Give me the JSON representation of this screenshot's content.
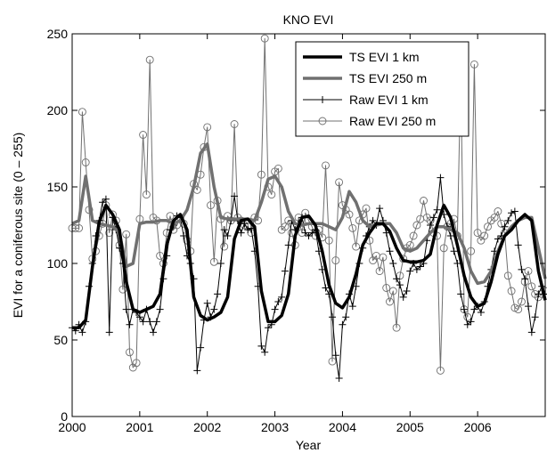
{
  "chart_data": {
    "type": "line",
    "title": "KNO EVI",
    "xlabel": "Year",
    "ylabel": "EVI for a coniferous site (0 – 255)",
    "xlim": [
      2000,
      2007
    ],
    "ylim": [
      0,
      250
    ],
    "x_ticks": [
      2000,
      2001,
      2002,
      2003,
      2004,
      2005,
      2006
    ],
    "y_ticks": [
      0,
      50,
      100,
      150,
      200,
      250
    ],
    "grid": false,
    "legend_position": "top-right",
    "series": [
      {
        "name": "TS EVI 1 km",
        "color": "#000000",
        "style": "thick-line",
        "x": [
          2000.0,
          2000.1,
          2000.2,
          2000.3,
          2000.4,
          2000.5,
          2000.6,
          2000.7,
          2000.8,
          2000.9,
          2001.0,
          2001.1,
          2001.2,
          2001.3,
          2001.4,
          2001.5,
          2001.6,
          2001.7,
          2001.8,
          2001.9,
          2002.0,
          2002.1,
          2002.2,
          2002.3,
          2002.4,
          2002.5,
          2002.6,
          2002.7,
          2002.8,
          2002.9,
          2003.0,
          2003.1,
          2003.2,
          2003.3,
          2003.4,
          2003.5,
          2003.6,
          2003.7,
          2003.8,
          2003.9,
          2004.0,
          2004.1,
          2004.2,
          2004.3,
          2004.4,
          2004.5,
          2004.6,
          2004.7,
          2004.8,
          2004.9,
          2005.0,
          2005.1,
          2005.2,
          2005.3,
          2005.4,
          2005.5,
          2005.6,
          2005.7,
          2005.8,
          2005.9,
          2006.0,
          2006.1,
          2006.2,
          2006.3,
          2006.4,
          2006.5,
          2006.6,
          2006.7,
          2006.8,
          2006.9,
          2007.0
        ],
        "values": [
          58,
          58,
          63,
          98,
          127,
          138,
          132,
          122,
          88,
          70,
          68,
          70,
          72,
          80,
          112,
          128,
          132,
          122,
          78,
          66,
          63,
          65,
          68,
          78,
          116,
          128,
          129,
          124,
          82,
          62,
          62,
          66,
          80,
          118,
          130,
          131,
          125,
          108,
          86,
          74,
          71,
          78,
          93,
          112,
          120,
          126,
          126,
          121,
          110,
          102,
          101,
          101,
          102,
          106,
          125,
          138,
          130,
          112,
          92,
          78,
          72,
          74,
          88,
          106,
          118,
          122,
          128,
          132,
          128,
          95,
          76
        ]
      },
      {
        "name": "TS EVI 250 m",
        "color": "#707070",
        "style": "thick-line",
        "x": [
          2000.0,
          2000.1,
          2000.2,
          2000.3,
          2000.4,
          2000.5,
          2000.6,
          2000.7,
          2000.8,
          2000.9,
          2001.0,
          2001.1,
          2001.2,
          2001.3,
          2001.4,
          2001.5,
          2001.6,
          2001.7,
          2001.8,
          2001.9,
          2002.0,
          2002.1,
          2002.2,
          2002.3,
          2002.4,
          2002.5,
          2002.6,
          2002.7,
          2002.8,
          2002.9,
          2003.0,
          2003.1,
          2003.2,
          2003.3,
          2003.4,
          2003.5,
          2003.6,
          2003.7,
          2003.8,
          2003.9,
          2004.0,
          2004.1,
          2004.2,
          2004.3,
          2004.4,
          2004.5,
          2004.6,
          2004.7,
          2004.8,
          2004.9,
          2005.0,
          2005.1,
          2005.2,
          2005.3,
          2005.4,
          2005.5,
          2005.6,
          2005.7,
          2005.8,
          2005.9,
          2006.0,
          2006.1,
          2006.2,
          2006.3,
          2006.4,
          2006.5,
          2006.6,
          2006.7,
          2006.8,
          2006.9,
          2007.0
        ],
        "values": [
          126,
          128,
          157,
          128,
          126,
          125,
          124,
          120,
          98,
          100,
          126,
          127,
          127,
          128,
          128,
          126,
          128,
          135,
          150,
          172,
          178,
          150,
          130,
          129,
          129,
          129,
          129,
          128,
          140,
          155,
          157,
          150,
          134,
          126,
          125,
          126,
          126,
          126,
          124,
          122,
          130,
          147,
          140,
          128,
          124,
          125,
          126,
          126,
          120,
          110,
          108,
          110,
          115,
          120,
          124,
          124,
          122,
          120,
          110,
          95,
          87,
          88,
          95,
          108,
          118,
          124,
          128,
          130,
          130,
          110,
          90
        ]
      },
      {
        "name": "Raw EVI 1 km",
        "color": "#000000",
        "style": "thin-line-plus",
        "x": [
          2000.0,
          2000.05,
          2000.1,
          2000.15,
          2000.2,
          2000.25,
          2000.3,
          2000.35,
          2000.4,
          2000.45,
          2000.5,
          2000.55,
          2000.6,
          2000.65,
          2000.7,
          2000.75,
          2000.8,
          2000.85,
          2000.9,
          2000.95,
          2001.0,
          2001.05,
          2001.1,
          2001.15,
          2001.2,
          2001.25,
          2001.3,
          2001.35,
          2001.4,
          2001.45,
          2001.5,
          2001.55,
          2001.6,
          2001.65,
          2001.7,
          2001.75,
          2001.8,
          2001.85,
          2001.9,
          2001.95,
          2002.0,
          2002.05,
          2002.1,
          2002.15,
          2002.2,
          2002.25,
          2002.3,
          2002.35,
          2002.4,
          2002.45,
          2002.5,
          2002.55,
          2002.6,
          2002.65,
          2002.7,
          2002.75,
          2002.8,
          2002.85,
          2002.9,
          2002.95,
          2003.0,
          2003.05,
          2003.1,
          2003.15,
          2003.2,
          2003.25,
          2003.3,
          2003.35,
          2003.4,
          2003.45,
          2003.5,
          2003.55,
          2003.6,
          2003.65,
          2003.7,
          2003.75,
          2003.8,
          2003.85,
          2003.9,
          2003.95,
          2004.0,
          2004.05,
          2004.1,
          2004.15,
          2004.2,
          2004.25,
          2004.3,
          2004.35,
          2004.4,
          2004.45,
          2004.5,
          2004.55,
          2004.6,
          2004.65,
          2004.7,
          2004.75,
          2004.8,
          2004.85,
          2004.9,
          2004.95,
          2005.0,
          2005.05,
          2005.1,
          2005.15,
          2005.2,
          2005.25,
          2005.3,
          2005.35,
          2005.4,
          2005.45,
          2005.5,
          2005.55,
          2005.6,
          2005.65,
          2005.7,
          2005.75,
          2005.8,
          2005.85,
          2005.9,
          2005.95,
          2006.0,
          2006.05,
          2006.1,
          2006.15,
          2006.2,
          2006.25,
          2006.3,
          2006.35,
          2006.4,
          2006.45,
          2006.5,
          2006.55,
          2006.6,
          2006.65,
          2006.7,
          2006.75,
          2006.8,
          2006.85,
          2006.9,
          2006.95,
          2007.0
        ],
        "values": [
          58,
          56,
          60,
          55,
          62,
          85,
          100,
          118,
          128,
          140,
          142,
          55,
          130,
          122,
          110,
          100,
          70,
          60,
          70,
          68,
          65,
          62,
          70,
          62,
          55,
          62,
          70,
          90,
          105,
          122,
          125,
          131,
          130,
          118,
          105,
          100,
          90,
          30,
          45,
          63,
          74,
          65,
          70,
          80,
          100,
          122,
          118,
          128,
          144,
          128,
          120,
          126,
          122,
          123,
          108,
          85,
          46,
          42,
          58,
          60,
          70,
          75,
          78,
          95,
          112,
          128,
          122,
          126,
          130,
          120,
          118,
          120,
          122,
          108,
          96,
          84,
          80,
          65,
          40,
          25,
          60,
          65,
          80,
          72,
          85,
          100,
          110,
          118,
          124,
          128,
          125,
          136,
          128,
          120,
          108,
          100,
          90,
          86,
          78,
          82,
          95,
          100,
          96,
          98,
          100,
          115,
          125,
          130,
          135,
          156,
          132,
          124,
          118,
          108,
          100,
          80,
          70,
          60,
          62,
          70,
          72,
          68,
          75,
          85,
          96,
          108,
          116,
          118,
          124,
          128,
          133,
          134,
          112,
          96,
          90,
          72,
          55,
          65,
          80,
          85,
          80
        ]
      },
      {
        "name": "Raw EVI 250 m",
        "color": "#707070",
        "style": "thin-line-circle",
        "x": [
          2000.0,
          2000.05,
          2000.1,
          2000.15,
          2000.2,
          2000.25,
          2000.3,
          2000.35,
          2000.4,
          2000.45,
          2000.5,
          2000.55,
          2000.6,
          2000.65,
          2000.7,
          2000.75,
          2000.8,
          2000.85,
          2000.9,
          2000.95,
          2001.0,
          2001.05,
          2001.1,
          2001.15,
          2001.2,
          2001.25,
          2001.3,
          2001.35,
          2001.4,
          2001.45,
          2001.5,
          2001.55,
          2001.6,
          2001.65,
          2001.7,
          2001.75,
          2001.8,
          2001.85,
          2001.9,
          2001.95,
          2002.0,
          2002.05,
          2002.1,
          2002.15,
          2002.2,
          2002.25,
          2002.3,
          2002.35,
          2002.4,
          2002.45,
          2002.5,
          2002.55,
          2002.6,
          2002.65,
          2002.7,
          2002.75,
          2002.8,
          2002.85,
          2002.9,
          2002.95,
          2003.0,
          2003.05,
          2003.1,
          2003.15,
          2003.2,
          2003.25,
          2003.3,
          2003.35,
          2003.4,
          2003.45,
          2003.5,
          2003.55,
          2003.6,
          2003.65,
          2003.7,
          2003.75,
          2003.8,
          2003.85,
          2003.9,
          2003.95,
          2004.0,
          2004.05,
          2004.1,
          2004.15,
          2004.2,
          2004.25,
          2004.3,
          2004.35,
          2004.4,
          2004.45,
          2004.5,
          2004.55,
          2004.6,
          2004.65,
          2004.7,
          2004.75,
          2004.8,
          2004.85,
          2004.9,
          2004.95,
          2005.0,
          2005.05,
          2005.1,
          2005.15,
          2005.2,
          2005.25,
          2005.3,
          2005.35,
          2005.4,
          2005.45,
          2005.5,
          2005.55,
          2005.6,
          2005.65,
          2005.7,
          2005.75,
          2005.8,
          2005.85,
          2005.9,
          2005.95,
          2006.0,
          2006.05,
          2006.1,
          2006.15,
          2006.2,
          2006.25,
          2006.3,
          2006.35,
          2006.4,
          2006.45,
          2006.5,
          2006.55,
          2006.6,
          2006.65,
          2006.7,
          2006.75,
          2006.8,
          2006.85,
          2006.9,
          2006.95,
          2007.0
        ],
        "values": [
          123,
          123,
          123,
          199,
          166,
          135,
          103,
          108,
          118,
          126,
          138,
          120,
          132,
          128,
          112,
          83,
          119,
          42,
          32,
          35,
          129,
          184,
          145,
          233,
          130,
          128,
          105,
          100,
          120,
          131,
          122,
          125,
          130,
          126,
          115,
          108,
          152,
          148,
          158,
          176,
          189,
          138,
          101,
          141,
          129,
          111,
          131,
          128,
          191,
          130,
          128,
          125,
          124,
          120,
          130,
          128,
          158,
          247,
          150,
          145,
          160,
          162,
          122,
          124,
          128,
          120,
          112,
          130,
          120,
          133,
          128,
          124,
          118,
          122,
          117,
          164,
          115,
          36,
          102,
          153,
          138,
          135,
          132,
          123,
          111,
          128,
          132,
          136,
          115,
          102,
          105,
          95,
          104,
          84,
          75,
          82,
          58,
          92,
          103,
          110,
          112,
          118,
          125,
          129,
          141,
          130,
          128,
          120,
          118,
          30,
          110,
          124,
          126,
          129,
          118,
          224,
          70,
          65,
          108,
          230,
          120,
          115,
          118,
          124,
          128,
          130,
          134,
          126,
          120,
          92,
          82,
          71,
          70,
          75,
          88,
          95,
          85,
          80,
          78,
          80,
          82
        ]
      }
    ]
  }
}
